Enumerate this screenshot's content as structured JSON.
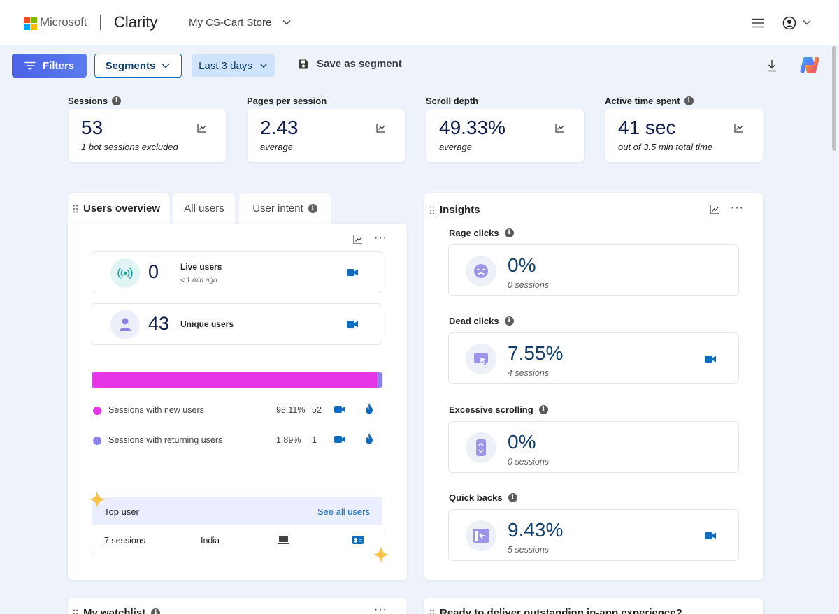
{
  "header": {
    "brand": "Microsoft",
    "product": "Clarity",
    "project": "My CS-Cart Store",
    "brand_colors": [
      "#f25022",
      "#7fba00",
      "#00a4ef",
      "#ffb900"
    ]
  },
  "toolbar": {
    "filters_label": "Filters",
    "segments_label": "Segments",
    "date_range_label": "Last 3 days",
    "save_segment_label": "Save as segment"
  },
  "metrics": [
    {
      "label": "Sessions",
      "value": "53",
      "sub": "1 bot sessions excluded"
    },
    {
      "label": "Pages per session",
      "value": "2.43",
      "sub": "average"
    },
    {
      "label": "Scroll depth",
      "value": "49.33%",
      "sub": "average"
    },
    {
      "label": "Active time spent",
      "value": "41 sec",
      "sub": "out of 3.5 min total time"
    }
  ],
  "users_panel": {
    "tabs": [
      "Users overview",
      "All users",
      "User intent"
    ],
    "live": {
      "value": "0",
      "label": "Live users",
      "sub": "< 1 min ago"
    },
    "unique": {
      "value": "43",
      "label": "Unique users"
    },
    "split": {
      "new_fraction": 0.9811,
      "new_color": "#e535e5",
      "returning_color": "#8b82f0"
    },
    "legend": [
      {
        "label": "Sessions with new users",
        "pct": "98.11%",
        "count": "52"
      },
      {
        "label": "Sessions with returning users",
        "pct": "1.89%",
        "count": "1"
      }
    ],
    "top_user": {
      "title": "Top user",
      "link": "See all users",
      "sessions": "7 sessions",
      "country": "India"
    }
  },
  "insights": {
    "title": "Insights",
    "items": [
      {
        "label": "Rage clicks",
        "value": "0%",
        "sub": "0 sessions",
        "icon": "angry-face-icon",
        "has_video": false
      },
      {
        "label": "Dead clicks",
        "value": "7.55%",
        "sub": "4 sessions",
        "icon": "cursor-click-icon",
        "has_video": true
      },
      {
        "label": "Excessive scrolling",
        "value": "0%",
        "sub": "0 sessions",
        "icon": "scroll-phone-icon",
        "has_video": false
      },
      {
        "label": "Quick backs",
        "value": "9.43%",
        "sub": "5 sessions",
        "icon": "back-arrow-icon",
        "has_video": true
      }
    ]
  },
  "bottom": {
    "watchlist_title": "My watchlist",
    "promo_title": "Ready to deliver outstanding in-app experience?"
  }
}
